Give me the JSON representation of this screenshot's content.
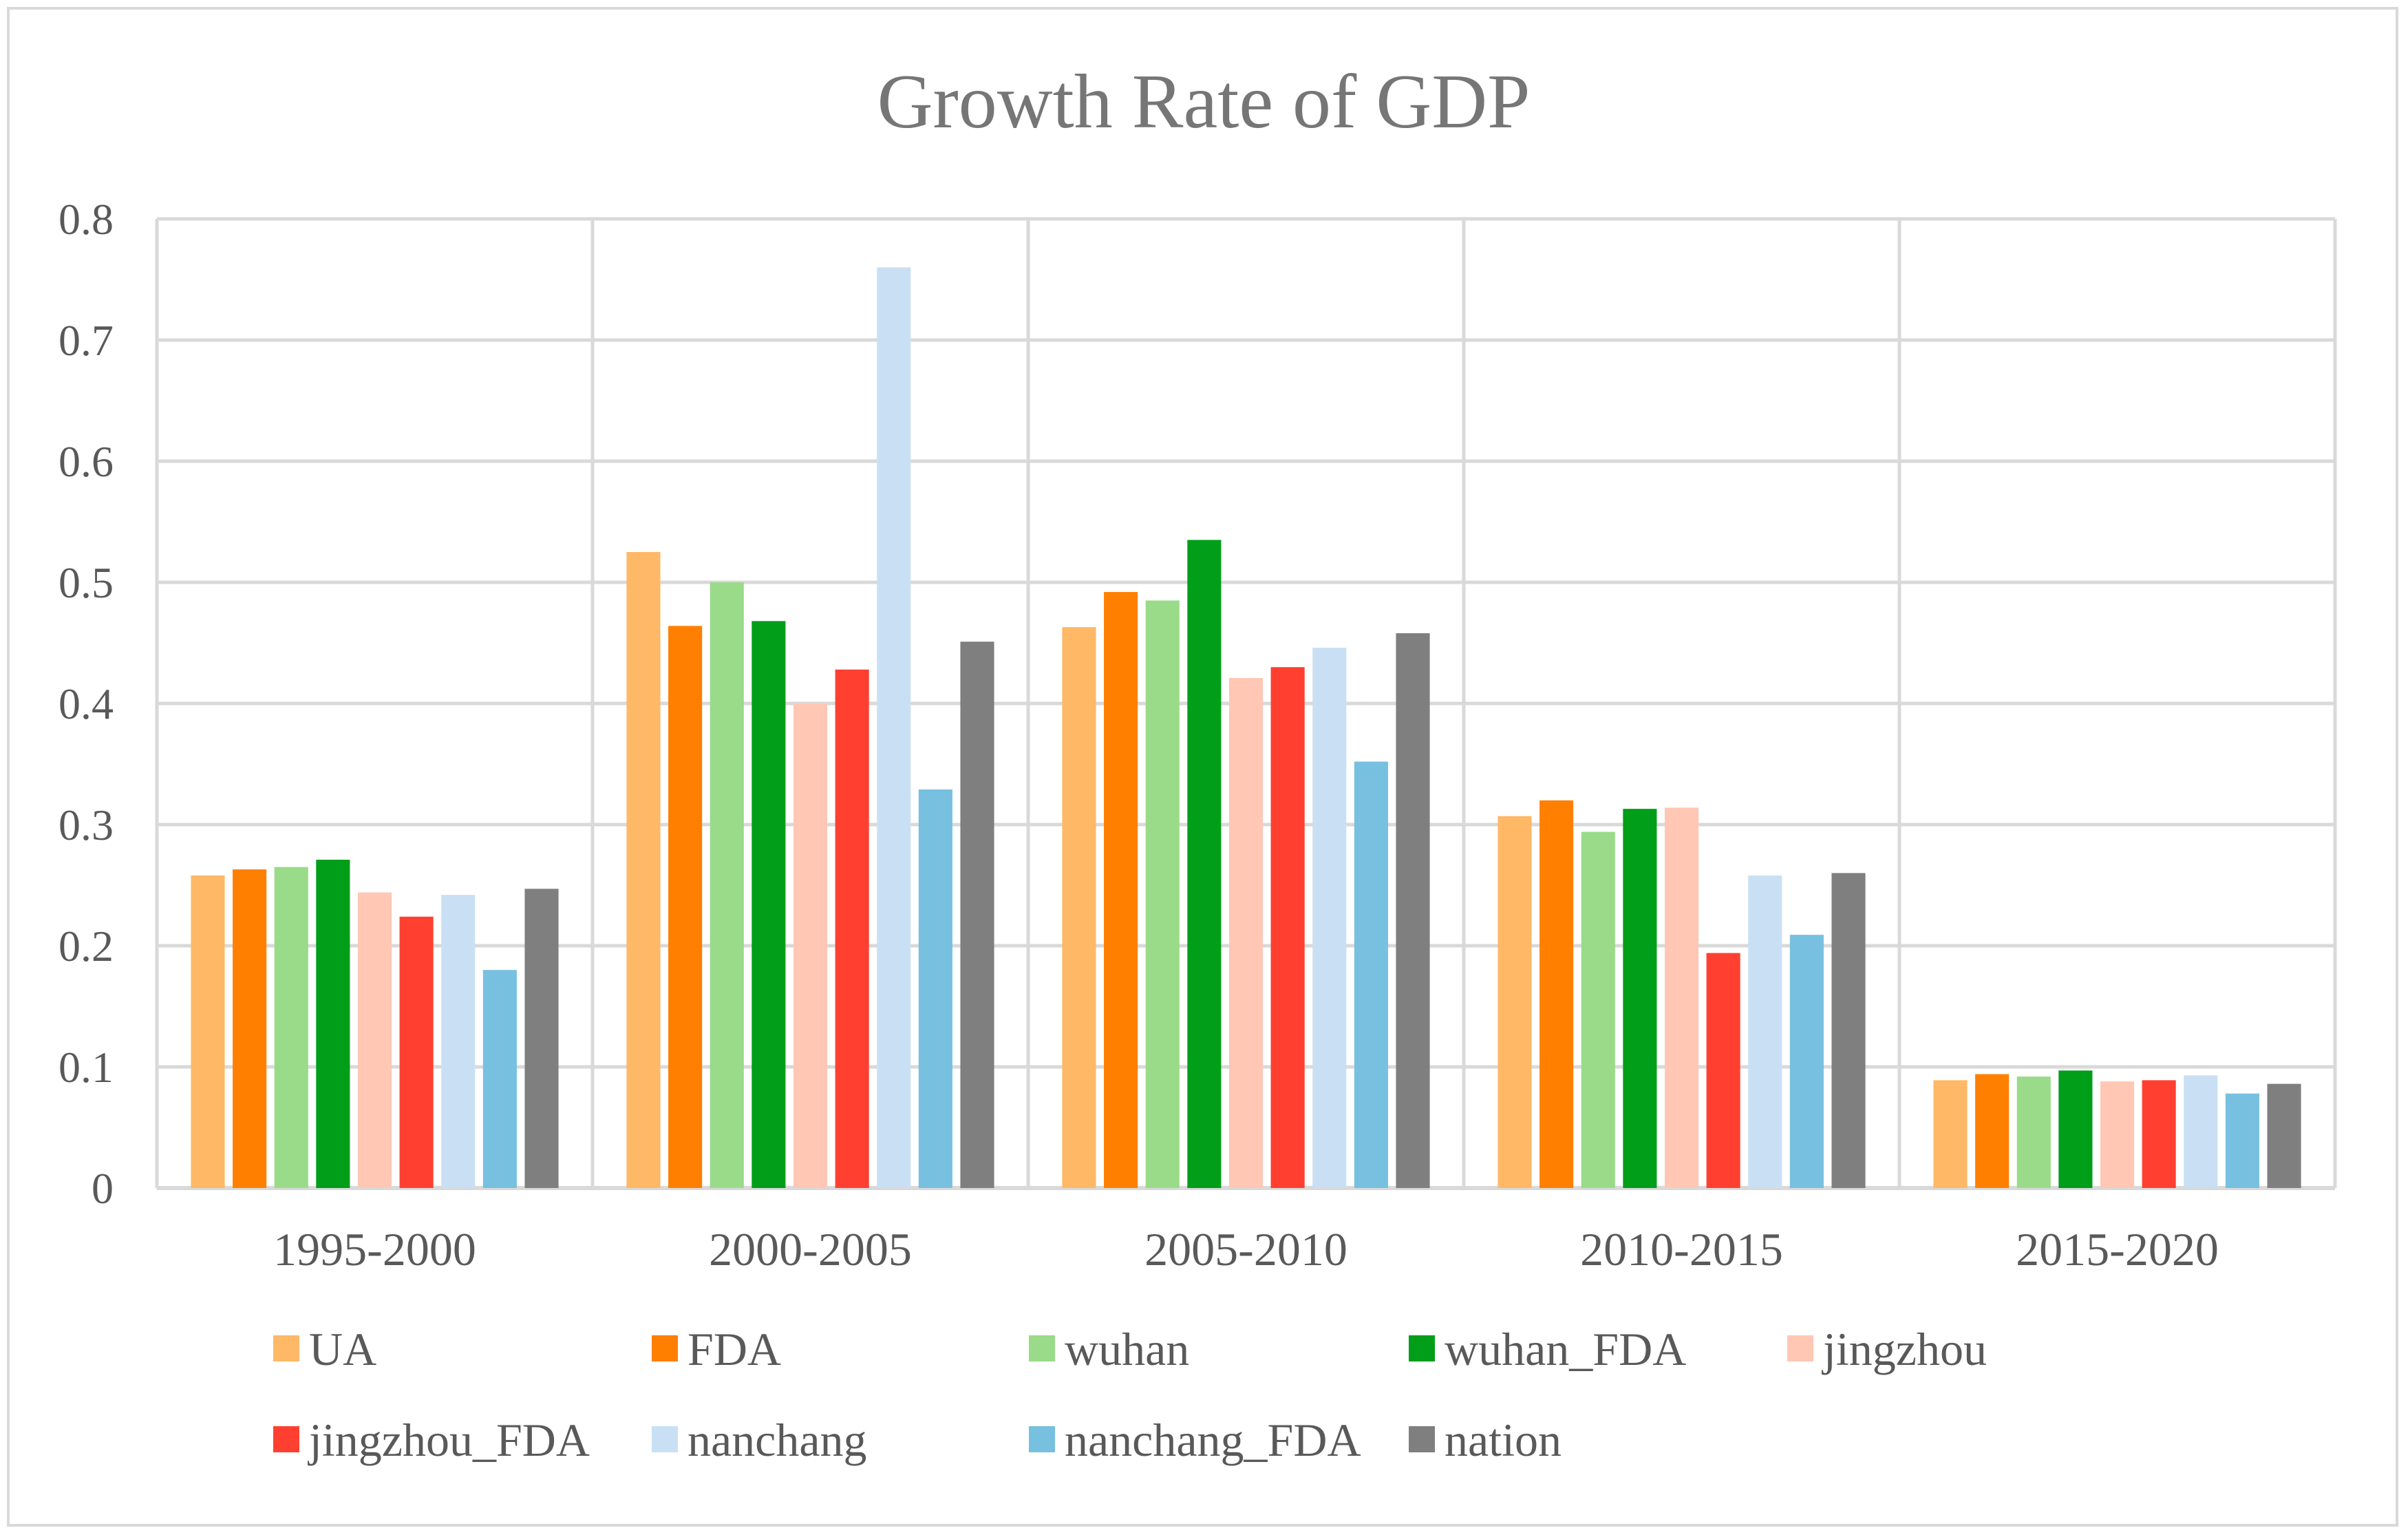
{
  "chart_data": {
    "type": "bar",
    "title": "Growth Rate of GDP",
    "xlabel": "",
    "ylabel": "",
    "ylim": [
      0,
      0.8
    ],
    "yticks": [
      0,
      0.1,
      0.2,
      0.3,
      0.4,
      0.5,
      0.6,
      0.7,
      0.8
    ],
    "ytick_labels": [
      "0",
      "0.1",
      "0.2",
      "0.3",
      "0.4",
      "0.5",
      "0.6",
      "0.7",
      "0.8"
    ],
    "grid": true,
    "legend_position": "bottom",
    "categories": [
      "1995-2000",
      "2000-2005",
      "2005-2010",
      "2010-2015",
      "2015-2020"
    ],
    "series": [
      {
        "name": "UA",
        "color": "#FFB866",
        "values": [
          0.258,
          0.525,
          0.463,
          0.307,
          0.089
        ]
      },
      {
        "name": "FDA",
        "color": "#FF7F00",
        "values": [
          0.263,
          0.464,
          0.492,
          0.32,
          0.094
        ]
      },
      {
        "name": "wuhan",
        "color": "#99DB88",
        "values": [
          0.265,
          0.5,
          0.485,
          0.294,
          0.092
        ]
      },
      {
        "name": "wuhan_FDA",
        "color": "#009E19",
        "values": [
          0.271,
          0.468,
          0.535,
          0.313,
          0.097
        ]
      },
      {
        "name": "jingzhou",
        "color": "#FFC7B4",
        "values": [
          0.244,
          0.4,
          0.421,
          0.314,
          0.088
        ]
      },
      {
        "name": "jingzhou_FDA",
        "color": "#FF4030",
        "values": [
          0.224,
          0.428,
          0.43,
          0.194,
          0.089
        ]
      },
      {
        "name": "nanchang",
        "color": "#C9E0F4",
        "values": [
          0.242,
          0.76,
          0.446,
          0.258,
          0.093
        ]
      },
      {
        "name": "nanchang_FDA",
        "color": "#77C0DF",
        "values": [
          0.18,
          0.329,
          0.352,
          0.209,
          0.078
        ]
      },
      {
        "name": "nation",
        "color": "#7F7F7F",
        "values": [
          0.247,
          0.451,
          0.458,
          0.26,
          0.086
        ]
      }
    ]
  },
  "style": {
    "grid_color": "#d9d9d9",
    "axis_color": "#d9d9d9"
  }
}
